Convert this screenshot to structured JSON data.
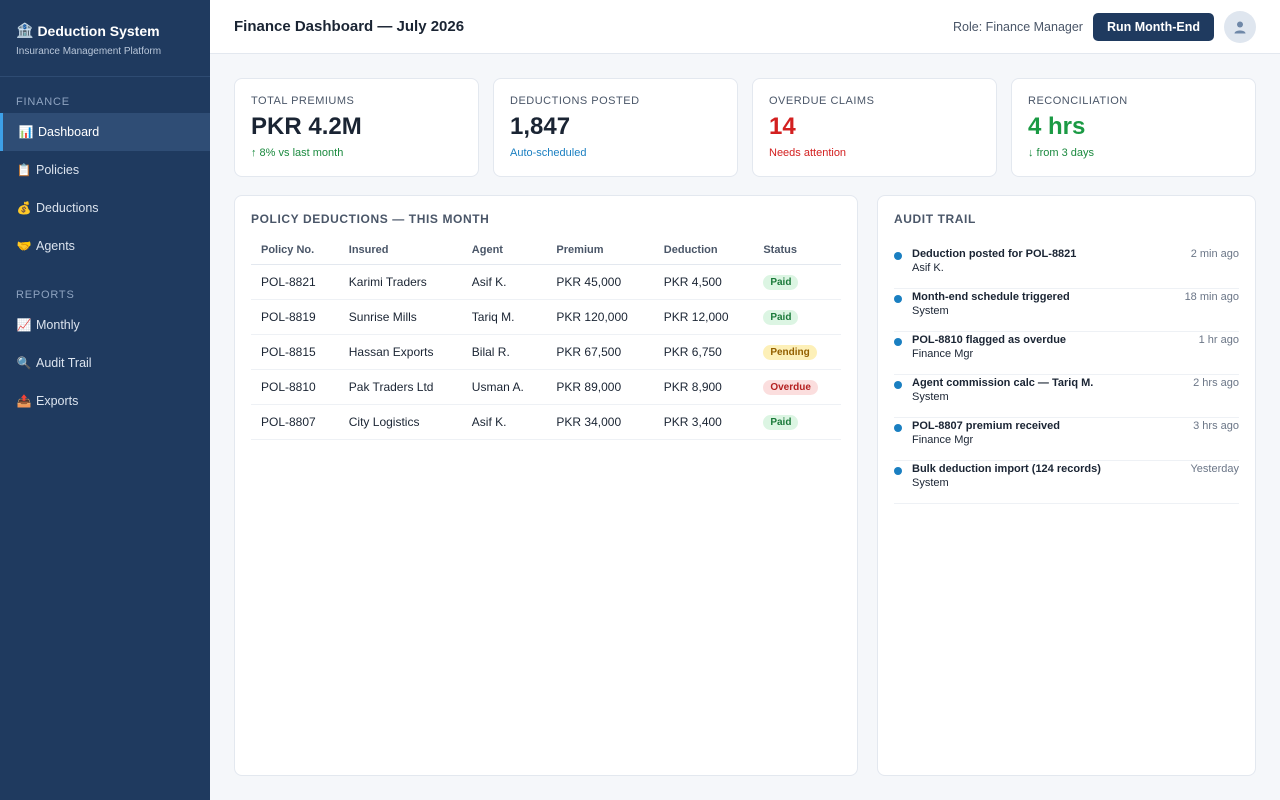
{
  "sidebar": {
    "brand_title": "Deduction System",
    "brand_icon": "🏦",
    "brand_sub": "Insurance Management Platform",
    "section_finance": "FINANCE",
    "section_reports": "REPORTS",
    "finance_items": [
      {
        "label": "Dashboard",
        "icon": "📊"
      },
      {
        "label": "Policies",
        "icon": "📋"
      },
      {
        "label": "Deductions",
        "icon": "💰"
      },
      {
        "label": "Agents",
        "icon": "🤝"
      }
    ],
    "report_items": [
      {
        "label": "Monthly",
        "icon": "📈"
      },
      {
        "label": "Audit Trail",
        "icon": "🔍"
      },
      {
        "label": "Exports",
        "icon": "📤"
      }
    ]
  },
  "header": {
    "title": "Finance Dashboard — July 2026",
    "role": "Role: Finance Manager",
    "run_button": "Run Month-End"
  },
  "kpis": [
    {
      "label": "TOTAL PREMIUMS",
      "value": "PKR 4.2M",
      "sub": "↑ 8% vs last month",
      "value_color": "#1a2433",
      "sub_color": "#1b8a3f"
    },
    {
      "label": "DEDUCTIONS POSTED",
      "value": "1,847",
      "sub": "Auto-scheduled",
      "value_color": "#1a2433",
      "sub_color": "#1a7fc1"
    },
    {
      "label": "OVERDUE CLAIMS",
      "value": "14",
      "sub": "Needs attention",
      "value_color": "#d32020",
      "sub_color": "#d32020"
    },
    {
      "label": "RECONCILIATION",
      "value": "4 hrs",
      "sub": "↓ from 3 days",
      "value_color": "#1b9a44",
      "sub_color": "#1b8a3f"
    }
  ],
  "deductions": {
    "title": "POLICY DEDUCTIONS — THIS MONTH",
    "columns": [
      "Policy No.",
      "Insured",
      "Agent",
      "Premium",
      "Deduction",
      "Status"
    ],
    "rows": [
      {
        "policy": "POL-8821",
        "insured": "Karimi Traders",
        "agent": "Asif K.",
        "premium": "PKR 45,000",
        "deduction": "PKR 4,500",
        "status": "Paid",
        "status_class": "paid"
      },
      {
        "policy": "POL-8819",
        "insured": "Sunrise Mills",
        "agent": "Tariq M.",
        "premium": "PKR 120,000",
        "deduction": "PKR 12,000",
        "status": "Paid",
        "status_class": "paid"
      },
      {
        "policy": "POL-8815",
        "insured": "Hassan Exports",
        "agent": "Bilal R.",
        "premium": "PKR 67,500",
        "deduction": "PKR 6,750",
        "status": "Pending",
        "status_class": "pending"
      },
      {
        "policy": "POL-8810",
        "insured": "Pak Traders Ltd",
        "agent": "Usman A.",
        "premium": "PKR 89,000",
        "deduction": "PKR 8,900",
        "status": "Overdue",
        "status_class": "overdue"
      },
      {
        "policy": "POL-8807",
        "insured": "City Logistics",
        "agent": "Asif K.",
        "premium": "PKR 34,000",
        "deduction": "PKR 3,400",
        "status": "Paid",
        "status_class": "paid"
      }
    ]
  },
  "audit": {
    "title": "AUDIT TRAIL",
    "items": [
      {
        "title": "Deduction posted for POL-8821",
        "by": "Asif K.",
        "time": "2 min ago"
      },
      {
        "title": "Month-end schedule triggered",
        "by": "System",
        "time": "18 min ago"
      },
      {
        "title": "POL-8810 flagged as overdue",
        "by": "Finance Mgr",
        "time": "1 hr ago"
      },
      {
        "title": "Agent commission calc — Tariq M.",
        "by": "System",
        "time": "2 hrs ago"
      },
      {
        "title": "POL-8807 premium received",
        "by": "Finance Mgr",
        "time": "3 hrs ago"
      },
      {
        "title": "Bulk deduction import (124 records)",
        "by": "System",
        "time": "Yesterday"
      }
    ]
  }
}
